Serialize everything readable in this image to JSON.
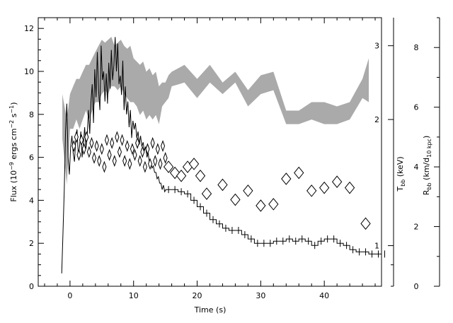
{
  "chart_data": {
    "type": "line",
    "title": "",
    "xlabel": "Time (s)",
    "ylabel_left": "Flux (10⁻⁹ ergs cm⁻² s⁻¹)",
    "ylabel_right_inner": "Tₕₕ (keV)",
    "ylabel_right_outer": "Rₕₕ (km/d₁₀ ₖₚₑ)",
    "xlim": [
      -5,
      49
    ],
    "ylim_left": [
      0,
      12.5
    ],
    "x_ticks": [
      0,
      10,
      20,
      30,
      40
    ],
    "left_ticks": [
      0,
      2,
      4,
      6,
      8,
      10,
      12
    ],
    "temperature_axis": {
      "scale": "log",
      "range": [
        0.8,
        3.5
      ],
      "ticks": [
        1,
        2,
        3
      ]
    },
    "radius_axis": {
      "scale": "linear",
      "range": [
        0,
        9
      ],
      "ticks": [
        0,
        2,
        4,
        6,
        8
      ]
    },
    "axis_labels": {
      "x": "Time (s)",
      "left": {
        "main": "Flux (10",
        "exp1": "−9",
        "mid": " ergs cm",
        "exp2": "−2",
        "mid2": " s",
        "exp3": "−1",
        "end": ")"
      },
      "t": {
        "main": "T",
        "sub": "bb",
        "end": " (keV)"
      },
      "r": {
        "main": "R",
        "sub": "bb",
        "mid": " (km/d",
        "sub2": "10 kpc",
        "end": ")"
      }
    },
    "series": [
      {
        "kind": "flux_fine",
        "color": "#000000",
        "x": [
          -1.3,
          -1.1,
          -0.9,
          -0.7,
          -0.5,
          -0.3,
          -0.1,
          0.1,
          0.3,
          0.5,
          0.7,
          0.9,
          1.1,
          1.3,
          1.5,
          1.7,
          1.9,
          2.1,
          2.3,
          2.5,
          2.7,
          2.9,
          3.1,
          3.3,
          3.5,
          3.7,
          3.9,
          4.1,
          4.3,
          4.5,
          4.7,
          4.9,
          5.1,
          5.3,
          5.5,
          5.7,
          5.9,
          6.1,
          6.3,
          6.5,
          6.7,
          6.9,
          7.1,
          7.3,
          7.5,
          7.7,
          7.9,
          8.1,
          8.3,
          8.5,
          8.7,
          8.9,
          9.1,
          9.3,
          9.5,
          9.7,
          9.9,
          10.1,
          10.3,
          10.5,
          10.7,
          10.9,
          11.1,
          11.3,
          11.5,
          11.7,
          11.9,
          12.1,
          12.3,
          12.5,
          12.7,
          12.9,
          13.1,
          13.3,
          13.5,
          13.7,
          13.9,
          14.1,
          14.3,
          14.5,
          14.7,
          14.9,
          15.1
        ],
        "y": [
          0.6,
          2.5,
          4.5,
          7.2,
          8.5,
          6.0,
          5.2,
          6.5,
          7.0,
          6.2,
          5.8,
          6.8,
          7.3,
          6.1,
          6.5,
          7.2,
          6.0,
          6.6,
          7.4,
          6.4,
          7.0,
          8.2,
          7.1,
          8.6,
          9.4,
          7.6,
          10.1,
          8.8,
          10.9,
          9.1,
          8.2,
          11.2,
          9.6,
          10.0,
          8.6,
          9.9,
          8.5,
          10.4,
          9.2,
          11.0,
          9.6,
          10.3,
          11.6,
          10.0,
          11.3,
          9.4,
          9.8,
          8.9,
          10.5,
          8.2,
          9.3,
          8.0,
          8.6,
          7.4,
          8.2,
          6.9,
          7.7,
          7.3,
          7.6,
          6.9,
          7.2,
          6.6,
          7.0,
          6.5,
          6.7,
          6.3,
          6.5,
          6.0,
          6.2,
          5.7,
          5.8,
          5.5,
          5.6,
          5.3,
          5.3,
          5.0,
          5.1,
          4.8,
          4.8,
          4.5,
          4.7,
          4.4,
          4.5
        ]
      },
      {
        "kind": "flux_binned",
        "color": "#000000",
        "x": [
          15,
          16,
          17,
          18,
          19,
          20,
          21,
          22,
          23,
          24,
          25,
          26,
          27,
          28,
          29,
          30,
          31,
          32,
          33,
          34,
          35,
          36,
          37,
          38,
          39,
          40,
          41,
          42,
          43,
          44,
          45,
          46,
          47,
          48,
          49
        ],
        "y": [
          4.5,
          4.5,
          4.4,
          4.3,
          4.0,
          3.7,
          3.4,
          3.1,
          2.9,
          2.7,
          2.6,
          2.6,
          2.4,
          2.2,
          2.0,
          2.0,
          2.0,
          2.1,
          2.1,
          2.2,
          2.1,
          2.2,
          2.1,
          1.9,
          2.1,
          2.2,
          2.2,
          2.0,
          1.9,
          1.7,
          1.6,
          1.6,
          1.5,
          1.5,
          1.5
        ]
      },
      {
        "kind": "temperature_band",
        "color": "#aaaaaa",
        "x": [
          -1.2,
          -0.5,
          0.0,
          0.5,
          1.0,
          1.5,
          2.0,
          2.5,
          3.0,
          3.5,
          4.0,
          4.5,
          5.0,
          5.5,
          6.0,
          6.5,
          7.0,
          7.5,
          8.0,
          8.5,
          9.0,
          9.5,
          10.0,
          10.5,
          11.0,
          11.5,
          12.0,
          12.5,
          13.0,
          13.5,
          14.0,
          14.5,
          15.0,
          15.5,
          16.0,
          18.0,
          20.0,
          22.0,
          24.0,
          26.0,
          28.0,
          30.0,
          32.0,
          34.0,
          36.0,
          38.0,
          40.0,
          42.0,
          44.0,
          46.0,
          47.0
        ],
        "y_low": [
          1.8,
          1.4,
          1.9,
          1.9,
          2.0,
          1.9,
          2.0,
          2.1,
          2.0,
          2.1,
          2.2,
          2.2,
          2.3,
          2.35,
          2.3,
          2.4,
          2.4,
          2.35,
          2.4,
          2.3,
          2.25,
          2.2,
          2.2,
          2.15,
          2.05,
          2.1,
          2.0,
          2.05,
          2.0,
          2.05,
          1.95,
          2.15,
          2.2,
          2.25,
          2.4,
          2.45,
          2.25,
          2.45,
          2.3,
          2.45,
          2.15,
          2.3,
          2.35,
          1.95,
          1.95,
          2.0,
          1.95,
          1.95,
          2.0,
          2.25,
          2.2
        ],
        "y_high": [
          2.3,
          2.0,
          2.3,
          2.4,
          2.5,
          2.5,
          2.6,
          2.7,
          2.7,
          2.8,
          2.9,
          3.0,
          3.1,
          3.05,
          3.1,
          3.15,
          3.0,
          3.05,
          3.1,
          3.0,
          2.95,
          3.0,
          2.8,
          2.75,
          2.7,
          2.75,
          2.6,
          2.65,
          2.55,
          2.6,
          2.4,
          2.45,
          2.45,
          2.55,
          2.6,
          2.7,
          2.5,
          2.7,
          2.45,
          2.6,
          2.35,
          2.55,
          2.6,
          2.1,
          2.1,
          2.2,
          2.2,
          2.15,
          2.2,
          2.5,
          2.8
        ]
      },
      {
        "kind": "radius_fine",
        "color": "#000000",
        "x": [
          0.6,
          1.0,
          1.4,
          1.8,
          2.2,
          2.6,
          3.0,
          3.4,
          3.8,
          4.2,
          4.6,
          5.0,
          5.4,
          5.8,
          6.2,
          6.6,
          7.0,
          7.4,
          7.8,
          8.2,
          8.6,
          9.0,
          9.4,
          9.8,
          10.2,
          10.6,
          11.0,
          11.4,
          11.8,
          12.2,
          12.6,
          13.0,
          13.4,
          13.8,
          14.2,
          14.6,
          15.0
        ],
        "y": [
          4.7,
          5.0,
          4.4,
          4.9,
          4.6,
          5.0,
          4.5,
          4.8,
          4.3,
          4.7,
          4.2,
          4.6,
          4.0,
          4.9,
          4.4,
          4.8,
          4.2,
          5.0,
          4.5,
          4.9,
          4.2,
          4.7,
          4.1,
          4.6,
          4.4,
          4.8,
          4.2,
          4.5,
          4.0,
          4.6,
          4.1,
          4.8,
          4.2,
          4.6,
          4.1,
          4.7,
          4.3
        ]
      },
      {
        "kind": "radius_points",
        "color": "#000000",
        "x": [
          15.5,
          16.5,
          17.5,
          18.5,
          19.5,
          20.5,
          21.5,
          24,
          26,
          28,
          30,
          32,
          34,
          36,
          38,
          40,
          42,
          44,
          46.5
        ],
        "y": [
          4.0,
          3.8,
          3.7,
          4.0,
          4.1,
          3.7,
          3.1,
          3.4,
          2.9,
          3.2,
          2.7,
          2.75,
          3.6,
          3.8,
          3.2,
          3.3,
          3.5,
          3.3,
          2.1
        ]
      }
    ]
  }
}
